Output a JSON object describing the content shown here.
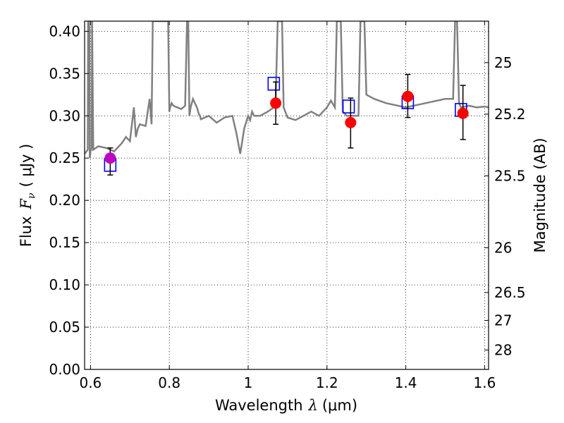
{
  "chart_data": {
    "type": "scatter",
    "xlabel_parts": {
      "text": "Wavelength",
      "symbol": "λ",
      "unit": "(μm)"
    },
    "ylabel_parts": {
      "text": "Flux",
      "symbol": "F",
      "subscript": "ν",
      "unit": "( μJy )"
    },
    "ylabel_right": "Magnitude (AB)",
    "xlim": [
      0.585,
      1.61
    ],
    "ylim": [
      0.0,
      0.412
    ],
    "x_ticks": [
      {
        "value": 0.6,
        "label": "0.6"
      },
      {
        "value": 0.8,
        "label": "0.8"
      },
      {
        "value": 1.0,
        "label": "1"
      },
      {
        "value": 1.2,
        "label": "1.2"
      },
      {
        "value": 1.4,
        "label": "1.4"
      },
      {
        "value": 1.6,
        "label": "1.6"
      }
    ],
    "y_ticks": [
      {
        "value": 0.0,
        "label": "0.00"
      },
      {
        "value": 0.05,
        "label": "0.05"
      },
      {
        "value": 0.1,
        "label": "0.10"
      },
      {
        "value": 0.15,
        "label": "0.15"
      },
      {
        "value": 0.2,
        "label": "0.20"
      },
      {
        "value": 0.25,
        "label": "0.25"
      },
      {
        "value": 0.3,
        "label": "0.30"
      },
      {
        "value": 0.35,
        "label": "0.35"
      },
      {
        "value": 0.4,
        "label": "0.40"
      }
    ],
    "right_ticks": [
      {
        "flux": 0.363,
        "label": "25"
      },
      {
        "flux": 0.302,
        "label": "25.2"
      },
      {
        "flux": 0.229,
        "label": "25.5"
      },
      {
        "flux": 0.144,
        "label": "26"
      },
      {
        "flux": 0.091,
        "label": "26.5"
      },
      {
        "flux": 0.058,
        "label": "27"
      },
      {
        "flux": 0.023,
        "label": "28"
      }
    ],
    "grid": true,
    "colors": {
      "model_line": "#808080",
      "observed": "#ff0000",
      "observed_first": "#bf00bf",
      "model_photometry": "#0000ff",
      "error_bar": "#000000"
    },
    "model_spectrum": {
      "x": [
        0.585,
        0.593,
        0.594,
        0.596,
        0.5975,
        0.598,
        0.6,
        0.603,
        0.604,
        0.607,
        0.62,
        0.64,
        0.66,
        0.68,
        0.69,
        0.7,
        0.71,
        0.715,
        0.72,
        0.725,
        0.74,
        0.75,
        0.755,
        0.758,
        0.76,
        0.77,
        0.775,
        0.778,
        0.781,
        0.785,
        0.787,
        0.79,
        0.795,
        0.797,
        0.8,
        0.802,
        0.806,
        0.81,
        0.82,
        0.83,
        0.84,
        0.845,
        0.848,
        0.851,
        0.854,
        0.86,
        0.87,
        0.875,
        0.878,
        0.88,
        0.9,
        0.92,
        0.94,
        0.96,
        0.97,
        0.98,
        0.99,
        1.0,
        1.005,
        1.01,
        1.015,
        1.03,
        1.05,
        1.065,
        1.07,
        1.075,
        1.078,
        1.082,
        1.086,
        1.09,
        1.1,
        1.12,
        1.14,
        1.16,
        1.18,
        1.2,
        1.21,
        1.22,
        1.225,
        1.23,
        1.235,
        1.24,
        1.25,
        1.27,
        1.28,
        1.285,
        1.29,
        1.295,
        1.3,
        1.32,
        1.35,
        1.4,
        1.45,
        1.5,
        1.52,
        1.525,
        1.53,
        1.535,
        1.54,
        1.56,
        1.58,
        1.6,
        1.61
      ],
      "y": [
        0.255,
        0.26,
        0.412,
        0.412,
        0.4,
        0.25,
        0.258,
        0.262,
        0.412,
        0.26,
        0.264,
        0.262,
        0.258,
        0.268,
        0.275,
        0.27,
        0.31,
        0.275,
        0.285,
        0.29,
        0.288,
        0.32,
        0.29,
        0.412,
        0.412,
        0.412,
        0.412,
        0.412,
        0.412,
        0.412,
        0.412,
        0.412,
        0.412,
        0.412,
        0.305,
        0.31,
        0.315,
        0.312,
        0.31,
        0.308,
        0.312,
        0.412,
        0.412,
        0.3,
        0.31,
        0.32,
        0.31,
        0.302,
        0.3,
        0.296,
        0.3,
        0.292,
        0.298,
        0.3,
        0.28,
        0.255,
        0.285,
        0.3,
        0.295,
        0.305,
        0.3,
        0.3,
        0.305,
        0.31,
        0.322,
        0.412,
        0.412,
        0.412,
        0.412,
        0.31,
        0.298,
        0.295,
        0.3,
        0.305,
        0.3,
        0.31,
        0.318,
        0.31,
        0.412,
        0.412,
        0.412,
        0.305,
        0.3,
        0.3,
        0.3,
        0.412,
        0.412,
        0.412,
        0.325,
        0.32,
        0.315,
        0.31,
        0.315,
        0.32,
        0.32,
        0.412,
        0.412,
        0.315,
        0.31,
        0.312,
        0.31,
        0.311,
        0.31
      ]
    },
    "observed": [
      {
        "x": 0.65,
        "y": 0.25,
        "yerr_low": 0.23,
        "yerr_high": 0.262
      },
      {
        "x": 1.07,
        "y": 0.315,
        "yerr_low": 0.29,
        "yerr_high": 0.34
      },
      {
        "x": 1.26,
        "y": 0.292,
        "yerr_low": 0.262,
        "yerr_high": 0.321
      },
      {
        "x": 1.405,
        "y": 0.323,
        "yerr_low": 0.298,
        "yerr_high": 0.349
      },
      {
        "x": 1.545,
        "y": 0.303,
        "yerr_low": 0.272,
        "yerr_high": 0.336
      }
    ],
    "model_photometry": [
      {
        "x": 0.65,
        "y": 0.242
      },
      {
        "x": 1.065,
        "y": 0.338
      },
      {
        "x": 1.255,
        "y": 0.311
      },
      {
        "x": 1.405,
        "y": 0.316
      },
      {
        "x": 1.54,
        "y": 0.307
      }
    ]
  }
}
